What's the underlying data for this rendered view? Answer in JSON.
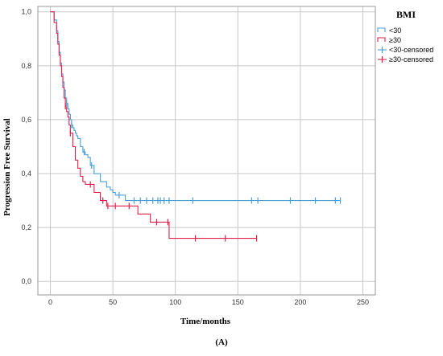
{
  "chart_data": {
    "type": "line",
    "step": true,
    "title": "",
    "xlabel": "Time/months",
    "ylabel": "Progression Free Survival",
    "xlim": [
      -10,
      260
    ],
    "ylim": [
      -0.05,
      1.02
    ],
    "xticks": [
      0,
      50,
      100,
      150,
      200,
      250
    ],
    "yticks": [
      0.0,
      0.2,
      0.4,
      0.6,
      0.8,
      1.0
    ],
    "xtick_labels": [
      "0",
      "50",
      "100",
      "150",
      "200",
      "250"
    ],
    "ytick_labels": [
      "0,0",
      "0,2",
      "0,4",
      "0,6",
      "0,8",
      "1,0"
    ],
    "grid": true,
    "legend_title": "BMI",
    "legend_position": "right",
    "legend_entries": [
      "<30",
      "≥30",
      "<30-censored",
      "≥30-censored"
    ],
    "caption": "(A)",
    "colors": {
      "lt30": "#4a9fd5",
      "ge30": "#e0204a",
      "grid": "#c8c8c8"
    },
    "series": [
      {
        "name": "<30",
        "x": [
          0,
          3,
          5,
          6,
          7,
          8,
          9,
          10,
          11,
          12,
          13,
          14,
          15,
          16,
          17,
          18,
          19,
          20,
          21,
          22,
          24,
          26,
          28,
          30,
          32,
          35,
          40,
          45,
          48,
          50,
          52,
          55,
          60,
          232
        ],
        "y": [
          1.0,
          0.97,
          0.93,
          0.89,
          0.85,
          0.81,
          0.77,
          0.74,
          0.71,
          0.68,
          0.66,
          0.64,
          0.62,
          0.6,
          0.58,
          0.57,
          0.56,
          0.55,
          0.54,
          0.53,
          0.5,
          0.48,
          0.47,
          0.46,
          0.43,
          0.4,
          0.37,
          0.35,
          0.34,
          0.33,
          0.32,
          0.32,
          0.3,
          0.3
        ],
        "censored_x": [
          13,
          17,
          27,
          33,
          55,
          67,
          72,
          77,
          82,
          86,
          88,
          91,
          95,
          114,
          161,
          166,
          192,
          212,
          228,
          232
        ]
      },
      {
        "name": "≥30",
        "x": [
          0,
          3,
          5,
          6,
          7,
          8,
          9,
          10,
          11,
          12,
          13,
          14,
          15,
          16,
          18,
          20,
          22,
          24,
          26,
          28,
          30,
          35,
          40,
          45,
          48,
          62,
          70,
          80,
          85,
          95,
          165
        ],
        "y": [
          1.0,
          0.96,
          0.92,
          0.88,
          0.84,
          0.8,
          0.76,
          0.72,
          0.68,
          0.65,
          0.63,
          0.61,
          0.58,
          0.55,
          0.5,
          0.45,
          0.42,
          0.39,
          0.37,
          0.36,
          0.36,
          0.33,
          0.3,
          0.28,
          0.28,
          0.28,
          0.25,
          0.22,
          0.22,
          0.16,
          0.16
        ],
        "censored_x": [
          12,
          16,
          32,
          42,
          46,
          52,
          63,
          85,
          94,
          116,
          140,
          165
        ]
      }
    ]
  }
}
